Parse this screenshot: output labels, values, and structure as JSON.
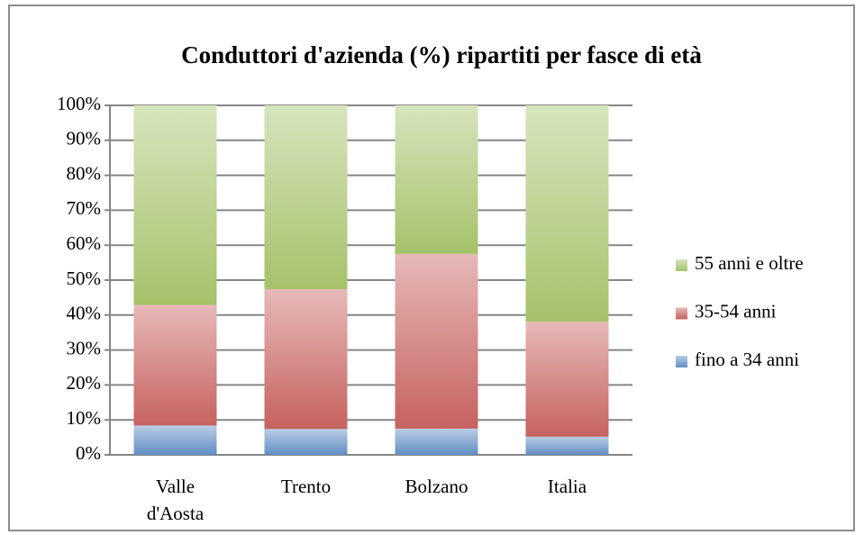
{
  "chart_data": {
    "type": "stacked_bar",
    "title": "Conduttori d'azienda (%) ripartiti per fasce di età",
    "categories": [
      "Valle d'Aosta",
      "Trento",
      "Bolzano",
      "Italia"
    ],
    "series": [
      {
        "name": "fino a 34 anni",
        "color": "#4f81bd",
        "values": [
          8.4,
          7.4,
          7.5,
          5.2
        ]
      },
      {
        "name": "35-54 anni",
        "color": "#c0504d",
        "values": [
          34.5,
          40.0,
          50.0,
          32.9
        ]
      },
      {
        "name": "55 anni e oltre",
        "color": "#9bbb59",
        "values": [
          57.1,
          52.6,
          42.5,
          61.9
        ]
      }
    ],
    "ylim": [
      0,
      100
    ],
    "yticks": [
      {
        "value": 0,
        "label": "0%"
      },
      {
        "value": 10,
        "label": "10%"
      },
      {
        "value": 20,
        "label": "20%"
      },
      {
        "value": 30,
        "label": "30%"
      },
      {
        "value": 40,
        "label": "40%"
      },
      {
        "value": 50,
        "label": "50%"
      },
      {
        "value": 60,
        "label": "60%"
      },
      {
        "value": 70,
        "label": "70%"
      },
      {
        "value": 80,
        "label": "80%"
      },
      {
        "value": 90,
        "label": "90%"
      },
      {
        "value": 100,
        "label": "100%"
      }
    ],
    "grid": true,
    "legend": "right"
  }
}
